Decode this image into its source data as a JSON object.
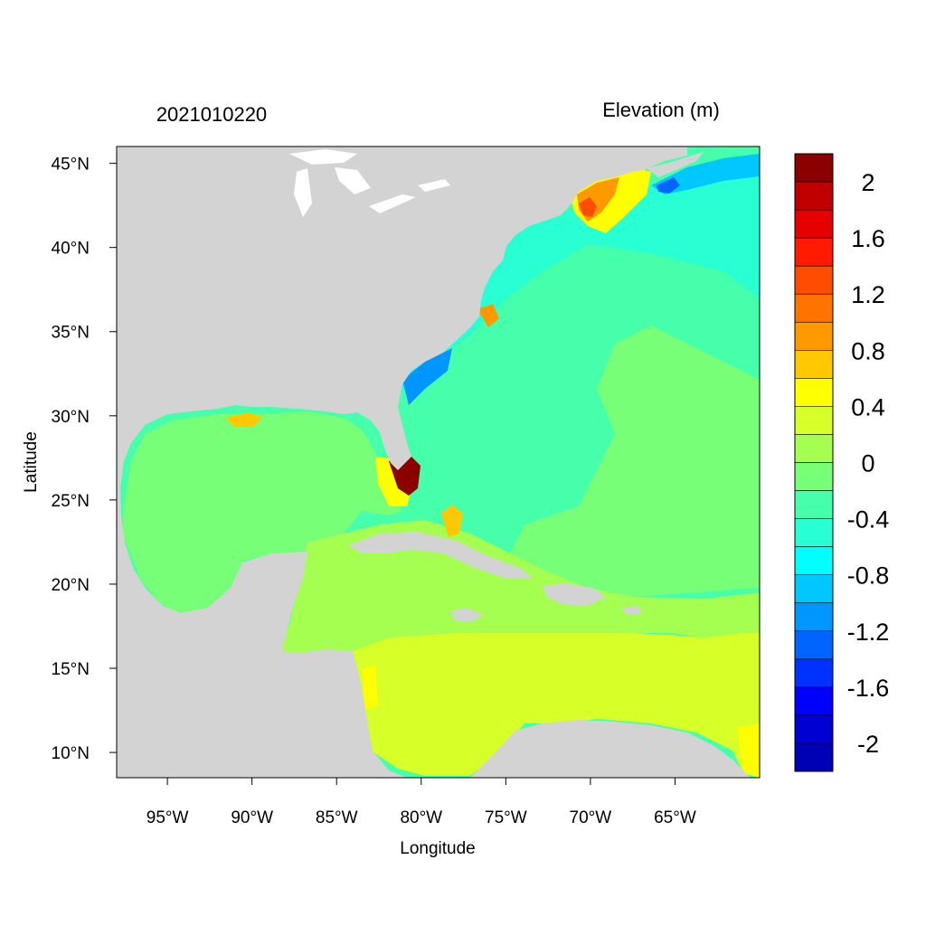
{
  "title_left": "2021010220",
  "title_right": "Elevation (m)",
  "xlabel": "Longitude",
  "ylabel": "Latitude",
  "x_ticks": [
    "95°W",
    "90°W",
    "85°W",
    "80°W",
    "75°W",
    "70°W",
    "65°W"
  ],
  "y_ticks": [
    "45°N",
    "40°N",
    "35°N",
    "30°N",
    "25°N",
    "20°N",
    "15°N",
    "10°N"
  ],
  "map": {
    "lon_range": [
      -98,
      -60
    ],
    "lat_range": [
      8.5,
      46
    ],
    "tick_lons": [
      -95,
      -90,
      -85,
      -80,
      -75,
      -70,
      -65
    ],
    "tick_lats": [
      45,
      40,
      35,
      30,
      25,
      20,
      15,
      10
    ],
    "land_color": "#d3d3d3",
    "field_colors": {
      "gulf_of_mexico": "#78ff78",
      "open_atlantic": "#46ffaa",
      "northwest_atlantic": "#28ffd2",
      "caribbean_north": "#a5ff50",
      "caribbean_south": "#d7ff28",
      "florida_surge": "#8b0000",
      "gulf_of_maine_high": "#ff8c00",
      "nova_scotia_low": "#00b4ff"
    }
  },
  "colorbar": {
    "colors": [
      "#8b0000",
      "#c00000",
      "#e60000",
      "#ff1a00",
      "#ff4d00",
      "#ff7300",
      "#ff9900",
      "#ffc800",
      "#ffff00",
      "#d7ff28",
      "#a5ff50",
      "#78ff78",
      "#46ffaa",
      "#28ffd2",
      "#00ffff",
      "#00c8ff",
      "#0096ff",
      "#0064ff",
      "#0032ff",
      "#0000ff",
      "#0000d2",
      "#0000b4"
    ],
    "labels": [
      "2",
      "1.6",
      "1.2",
      "0.8",
      "0.4",
      "0",
      "-0.4",
      "-0.8",
      "-1.2",
      "-1.6",
      "-2"
    ]
  }
}
